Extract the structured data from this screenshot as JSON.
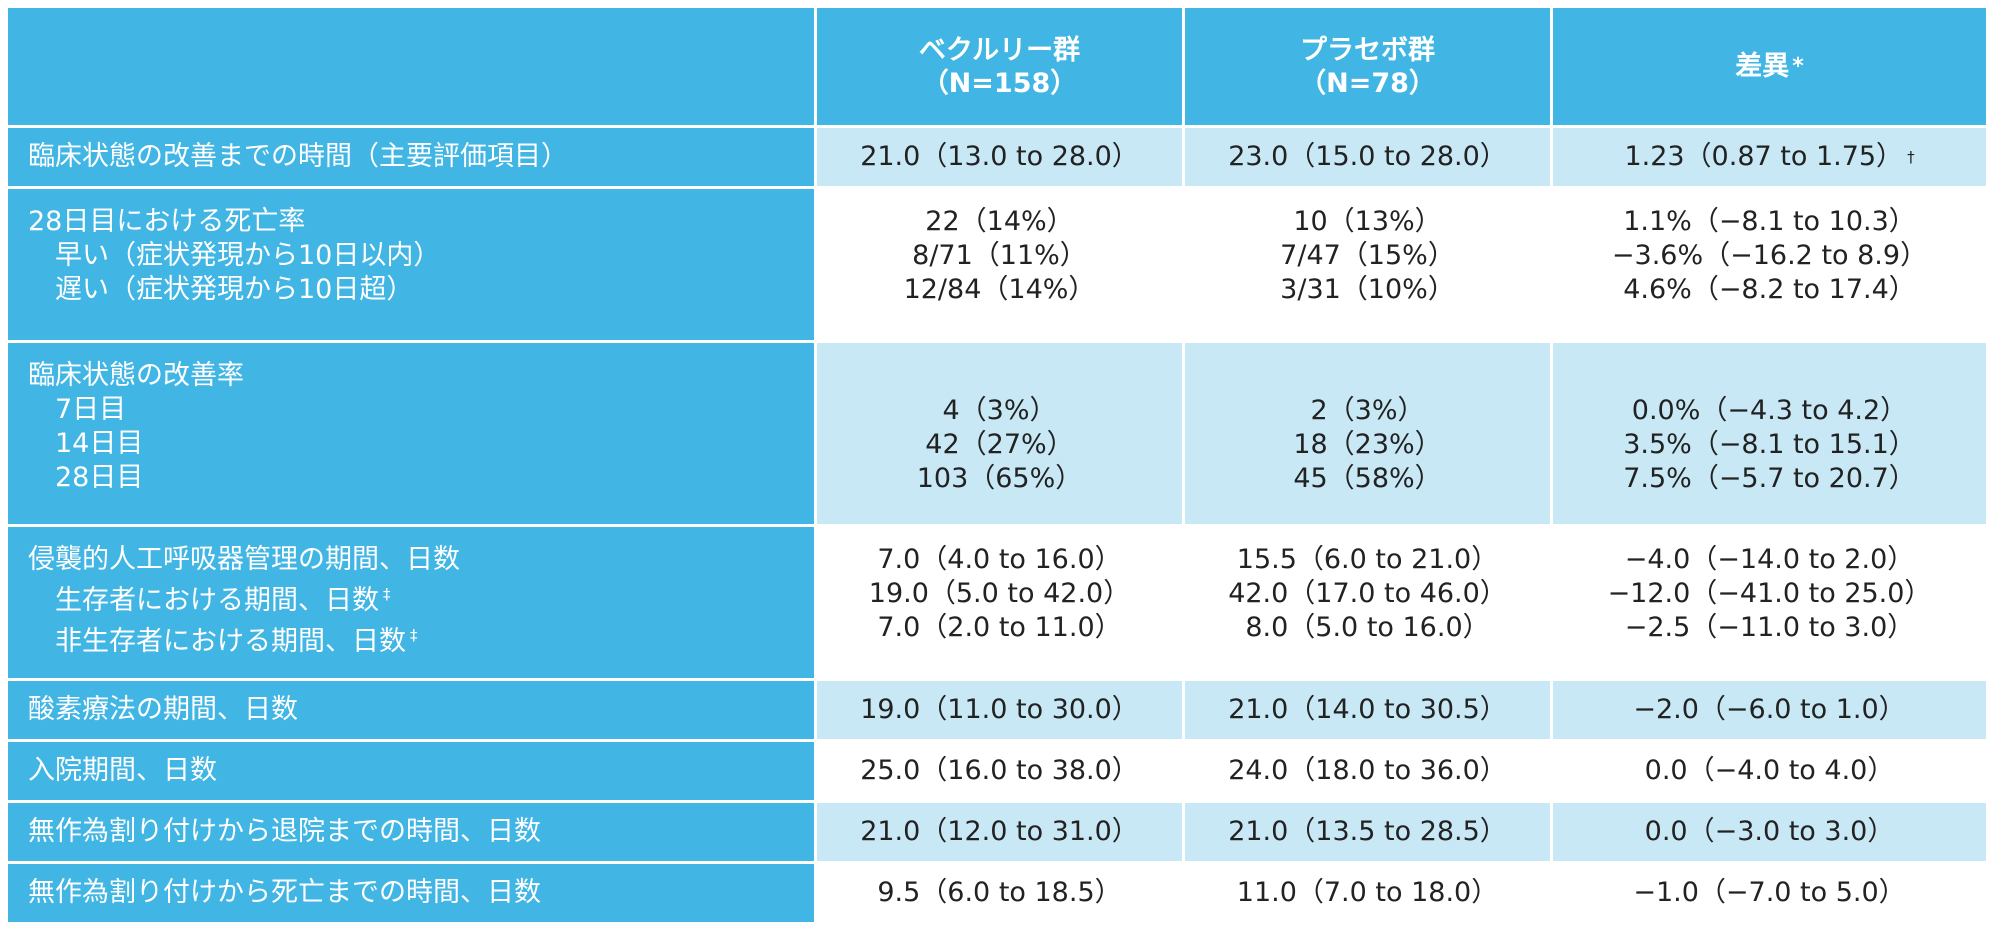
{
  "colors": {
    "header_bg": "#41b5e3",
    "label_bg": "#41b5e3",
    "row_light": "#c8e8f6",
    "row_white": "#ffffff"
  },
  "header": {
    "col1": {
      "line1": "ベクルリー群",
      "line2": "（N=158）"
    },
    "col2": {
      "line1": "プラセボ群",
      "line2": "（N=78）"
    },
    "col3": {
      "label": "差異",
      "mark": "*"
    }
  },
  "rows": [
    {
      "label": "臨床状態の改善までの時間（主要評価項目）",
      "c1": "21.0（13.0 to 28.0）",
      "c2": "23.0（15.0 to 28.0）",
      "c3": "1.23（0.87 to 1.75）",
      "c3_mark": "†"
    },
    {
      "label": "28日目における死亡率",
      "subs": [
        "　早い（症状発現から10日以内）",
        "　遅い（症状発現から10日超）"
      ],
      "c1": [
        "22（14%）",
        "8/71（11%）",
        "12/84（14%）"
      ],
      "c2": [
        "10（13%）",
        "7/47（15%）",
        "3/31（10%）"
      ],
      "c3": [
        "1.1%（−8.1 to 10.3）",
        "−3.6%（−16.2 to 8.9）",
        "4.6%（−8.2 to 17.4）"
      ]
    },
    {
      "label": "臨床状態の改善率",
      "subs": [
        "　7日目",
        "　14日目",
        "　28日目"
      ],
      "c1": [
        "4（3%）",
        "42（27%）",
        "103（65%）"
      ],
      "c2": [
        "2（3%）",
        "18（23%）",
        "45（58%）"
      ],
      "c3": [
        "0.0%（−4.3 to 4.2）",
        "3.5%（−8.1 to 15.1）",
        "7.5%（−5.7 to 20.7）"
      ]
    },
    {
      "label": "侵襲的人工呼吸器管理の期間、日数",
      "subs": [
        "　生存者における期間、日数",
        "　非生存者における期間、日数"
      ],
      "sub_mark": "‡",
      "c1": [
        "7.0（4.0 to 16.0）",
        "19.0（5.0 to 42.0）",
        "7.0（2.0 to 11.0）"
      ],
      "c2": [
        "15.5（6.0 to 21.0）",
        "42.0（17.0 to 46.0）",
        "8.0（5.0 to 16.0）"
      ],
      "c3": [
        "−4.0（−14.0 to 2.0）",
        "−12.0（−41.0 to 25.0）",
        "−2.5（−11.0 to 3.0）"
      ]
    },
    {
      "label": "酸素療法の期間、日数",
      "c1": "19.0（11.0 to 30.0）",
      "c2": "21.0（14.0 to 30.5）",
      "c3": "−2.0（−6.0 to 1.0）"
    },
    {
      "label": "入院期間、日数",
      "c1": "25.0（16.0 to 38.0）",
      "c2": "24.0（18.0 to 36.0）",
      "c3": "0.0（−4.0 to 4.0）"
    },
    {
      "label": "無作為割り付けから退院までの時間、日数",
      "c1": "21.0（12.0 to 31.0）",
      "c2": "21.0（13.5 to 28.5）",
      "c3": "0.0（−3.0 to 3.0）"
    },
    {
      "label": "無作為割り付けから死亡までの時間、日数",
      "c1": "9.5（6.0 to 18.5）",
      "c2": "11.0（7.0 to 18.0）",
      "c3": "−1.0（−7.0 to 5.0）"
    }
  ]
}
